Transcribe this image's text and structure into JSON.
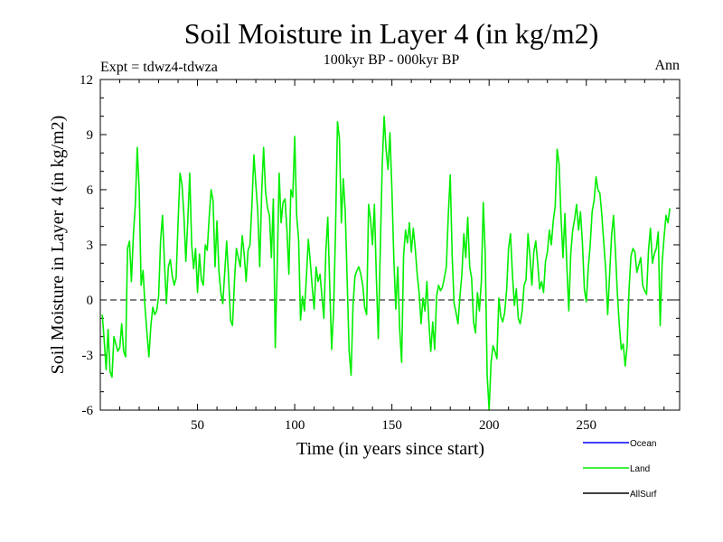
{
  "chart_data": {
    "type": "line",
    "title": "Soil Moisture in Layer 4 (in kg/m2)",
    "subtitle": "100kyr BP - 000kyr BP",
    "experiment_label": "Expt = tdwz4-tdwza",
    "season_label": "Ann",
    "xlabel": "Time (in years since start)",
    "ylabel": "Soil Moisture in Layer 4 (in kg/m2)",
    "xlim": [
      0,
      298
    ],
    "ylim": [
      -6,
      12
    ],
    "x_ticks": [
      50,
      100,
      150,
      200,
      250
    ],
    "x_tick_labels": [
      "50",
      "100",
      "150",
      "200",
      "250"
    ],
    "y_ticks": [
      -6,
      -3,
      0,
      3,
      6,
      9,
      12
    ],
    "y_tick_labels": [
      "-6",
      "-3",
      "0",
      "3",
      "6",
      "9",
      "12"
    ],
    "zero_line": "dashed",
    "legend_position": "bottom-right",
    "legend": [
      {
        "name": "Ocean",
        "color": "#0000ff"
      },
      {
        "name": "Land",
        "color": "#00ee00"
      },
      {
        "name": "AllSurf",
        "color": "#000000"
      }
    ],
    "series": [
      {
        "name": "Land",
        "color": "#00ee00",
        "x_start": 1,
        "x_step": 1,
        "values": [
          -0.8,
          -2.2,
          -3.8,
          -1.6,
          -3.9,
          -4.2,
          -2.0,
          -2.4,
          -2.8,
          -2.6,
          -1.3,
          -2.8,
          -3.1,
          2.8,
          3.2,
          1.0,
          3.5,
          5.2,
          8.3,
          6.0,
          0.8,
          1.6,
          -0.4,
          -1.8,
          -3.1,
          -1.4,
          -0.4,
          -0.8,
          -0.6,
          0.2,
          3.2,
          4.6,
          2.0,
          -0.2,
          1.8,
          2.2,
          1.3,
          0.8,
          1.2,
          4.2,
          6.9,
          6.3,
          4.6,
          2.1,
          4.3,
          6.9,
          3.0,
          1.7,
          2.8,
          0.4,
          2.5,
          1.1,
          0.8,
          3.0,
          2.7,
          4.5,
          6.0,
          5.4,
          1.8,
          4.3,
          1.6,
          0.4,
          -0.2,
          1.5,
          3.2,
          1.2,
          -1.1,
          -1.4,
          1.0,
          2.8,
          2.3,
          1.8,
          3.5,
          2.5,
          1.0,
          2.7,
          3.0,
          5.2,
          7.9,
          6.3,
          4.8,
          1.8,
          5.8,
          8.3,
          5.9,
          5.0,
          4.6,
          2.3,
          5.5,
          -2.6,
          1.8,
          6.9,
          4.2,
          5.3,
          5.5,
          3.8,
          1.4,
          6.0,
          5.6,
          8.9,
          4.6,
          3.3,
          -1.1,
          0.2,
          -0.6,
          1.2,
          3.3,
          2.1,
          0.7,
          -0.5,
          1.8,
          1.0,
          1.4,
          0.2,
          -1.0,
          2.6,
          4.5,
          0.8,
          -2.7,
          -0.6,
          3.8,
          9.7,
          8.8,
          4.2,
          6.6,
          4.8,
          1.0,
          -2.8,
          -4.1,
          -0.3,
          1.3,
          1.6,
          1.8,
          1.4,
          0.8,
          -0.4,
          -0.8,
          5.2,
          4.4,
          3.0,
          5.2,
          1.2,
          -2.1,
          2.6,
          7.3,
          10.0,
          8.2,
          7.1,
          9.1,
          6.0,
          2.2,
          -0.5,
          1.8,
          -1.6,
          -3.4,
          2.4,
          3.8,
          3.1,
          4.2,
          2.6,
          3.9,
          2.8,
          1.4,
          0.4,
          -1.3,
          0.1,
          -0.6,
          1.0,
          -1.2,
          -2.8,
          -1.2,
          -2.7,
          0.2,
          0.8,
          0.5,
          0.7,
          1.2,
          1.8,
          4.6,
          6.8,
          2.4,
          -0.2,
          -0.7,
          -1.3,
          0.2,
          1.4,
          3.6,
          2.3,
          4.5,
          1.8,
          1.2,
          -1.2,
          -1.8,
          0.4,
          -0.6,
          1.0,
          5.3,
          2.5,
          -4.1,
          -6.0,
          -3.4,
          -2.5,
          -2.8,
          -3.2,
          0.1,
          -0.9,
          -1.2,
          -0.7,
          0.5,
          2.8,
          3.6,
          1.4,
          -0.3,
          0.6,
          -1.0,
          -1.3,
          -0.6,
          0.8,
          1.1,
          3.6,
          2.4,
          0.8,
          2.6,
          3.2,
          2.0,
          0.6,
          1.0,
          0.4,
          2.1,
          2.6,
          3.8,
          3.0,
          4.3,
          5.1,
          8.2,
          7.4,
          4.5,
          2.3,
          4.7,
          1.8,
          -0.6,
          2.5,
          3.8,
          4.4,
          5.2,
          3.8,
          4.8,
          3.1,
          0.6,
          -0.1,
          1.7,
          3.0,
          4.8,
          5.4,
          6.7,
          6.0,
          5.8,
          4.6,
          3.1,
          1.6,
          -0.8,
          1.4,
          3.5,
          4.6,
          2.6,
          0.3,
          -1.4,
          -2.7,
          -2.4,
          -3.6,
          -2.5,
          0.6,
          2.4,
          2.8,
          2.6,
          1.5,
          1.9,
          2.3,
          0.8,
          0.5,
          0.3,
          2.7,
          3.9,
          2.0,
          2.5,
          2.8,
          3.7,
          -1.4,
          2.0,
          3.4,
          4.6,
          4.2,
          5.0
        ]
      }
    ]
  }
}
